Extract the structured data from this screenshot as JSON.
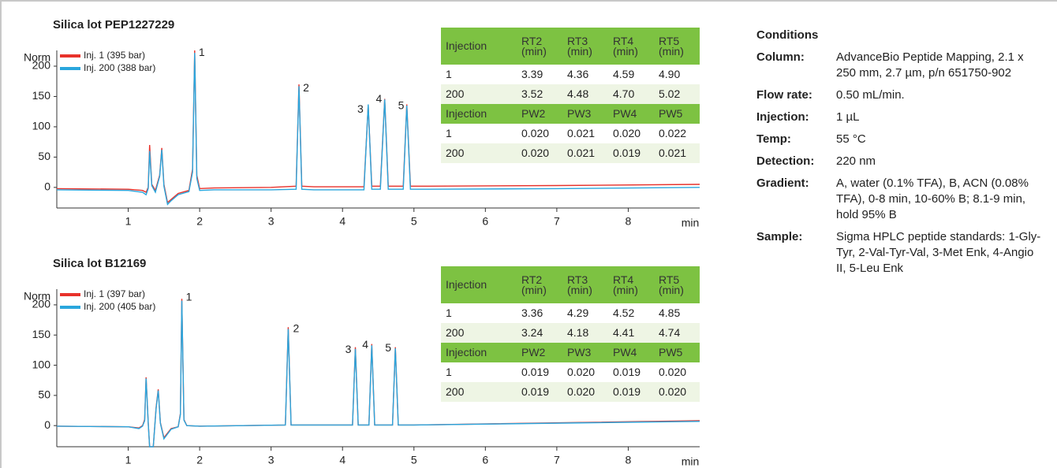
{
  "chart_data": [
    {
      "type": "line",
      "title": "Silica lot PEP1227229",
      "ylabel": "Norm",
      "xlabel": "min",
      "x": [
        0,
        1.0,
        1.2,
        1.25,
        1.28,
        1.3,
        1.33,
        1.38,
        1.44,
        1.47,
        1.5,
        1.55,
        1.6,
        1.7,
        1.85,
        1.9,
        1.93,
        1.96,
        2.0,
        2.2,
        3.0,
        3.35,
        3.39,
        3.43,
        3.6,
        4.3,
        4.36,
        4.41,
        4.53,
        4.59,
        4.64,
        4.85,
        4.9,
        4.95,
        5.2,
        7.0,
        9.0
      ],
      "series": [
        {
          "name": "Inj. 1 (395 bar)",
          "color": "#e8322b",
          "values": [
            -2,
            -3,
            -5,
            -8,
            0,
            70,
            5,
            -5,
            20,
            65,
            5,
            -25,
            -20,
            -10,
            -5,
            30,
            226,
            20,
            -2,
            -1,
            0,
            2,
            170,
            2,
            1,
            1,
            135,
            2,
            2,
            146,
            2,
            2,
            137,
            2,
            2,
            3,
            5
          ]
        },
        {
          "name": "Inj. 200 (388 bar)",
          "color": "#2aa6dd",
          "values": [
            -4,
            -5,
            -8,
            -12,
            -2,
            60,
            3,
            -8,
            18,
            62,
            2,
            -28,
            -22,
            -12,
            -7,
            25,
            222,
            15,
            -5,
            -4,
            -4,
            -3,
            167,
            -3,
            -4,
            -4,
            137,
            -3,
            -3,
            145,
            -3,
            -3,
            135,
            -3,
            -3,
            -2,
            0
          ]
        }
      ],
      "xlim": [
        0,
        9
      ],
      "xticks": [
        1,
        2,
        3,
        4,
        5,
        6,
        7,
        8
      ],
      "ylim": [
        -34,
        226
      ],
      "yticks": [
        0,
        50,
        100,
        150,
        200
      ],
      "grid": false,
      "legend": "upper left",
      "annotations": [
        {
          "text": "1",
          "x": 2.03,
          "y": 222
        },
        {
          "text": "2",
          "x": 3.49,
          "y": 163
        },
        {
          "text": "3",
          "x": 4.25,
          "y": 128
        },
        {
          "text": "4",
          "x": 4.51,
          "y": 145
        },
        {
          "text": "5",
          "x": 4.82,
          "y": 134
        }
      ],
      "tables": [
        {
          "header": [
            "Injection",
            "RT2 (min)",
            "RT3 (min)",
            "RT4 (min)",
            "RT5 (min)"
          ],
          "rows": [
            [
              "1",
              "3.39",
              "4.36",
              "4.59",
              "4.90"
            ],
            [
              "200",
              "3.52",
              "4.48",
              "4.70",
              "5.02"
            ]
          ]
        },
        {
          "header": [
            "Injection",
            "PW2",
            "PW3",
            "PW4",
            "PW5"
          ],
          "rows": [
            [
              "1",
              "0.020",
              "0.021",
              "0.020",
              "0.022"
            ],
            [
              "200",
              "0.020",
              "0.021",
              "0.019",
              "0.021"
            ]
          ]
        }
      ]
    },
    {
      "type": "line",
      "title": "Silica lot B12169",
      "ylabel": "Norm",
      "xlabel": "min",
      "x": [
        0,
        1.0,
        1.15,
        1.2,
        1.23,
        1.25,
        1.28,
        1.3,
        1.35,
        1.39,
        1.42,
        1.45,
        1.5,
        1.6,
        1.7,
        1.73,
        1.75,
        1.78,
        1.82,
        2.0,
        3.2,
        3.24,
        3.28,
        4.14,
        4.18,
        4.22,
        4.37,
        4.41,
        4.45,
        4.7,
        4.74,
        4.78,
        5.0,
        9.0
      ],
      "series": [
        {
          "name": "Inj. 1 (397 bar)",
          "color": "#e8322b",
          "values": [
            -1,
            -2,
            -4,
            0,
            10,
            80,
            5,
            -35,
            -35,
            30,
            60,
            5,
            -20,
            -5,
            -2,
            20,
            210,
            10,
            0,
            -1,
            1,
            163,
            1,
            1,
            130,
            1,
            1,
            135,
            1,
            1,
            130,
            1,
            1,
            8
          ]
        },
        {
          "name": "Inj. 200 (405 bar)",
          "color": "#2aa6dd",
          "values": [
            -1,
            -2,
            -5,
            -1,
            8,
            78,
            4,
            -35,
            -35,
            28,
            58,
            4,
            -22,
            -6,
            -2,
            18,
            207,
            9,
            0,
            -1,
            1,
            160,
            1,
            1,
            127,
            1,
            1,
            133,
            1,
            1,
            128,
            1,
            1,
            7
          ]
        }
      ],
      "xlim": [
        0,
        9
      ],
      "xticks": [
        1,
        2,
        3,
        4,
        5,
        6,
        7,
        8
      ],
      "ylim": [
        -35,
        226
      ],
      "yticks": [
        0,
        50,
        100,
        150,
        200
      ],
      "grid": false,
      "legend": "upper left",
      "annotations": [
        {
          "text": "1",
          "x": 1.85,
          "y": 212
        },
        {
          "text": "2",
          "x": 3.35,
          "y": 160
        },
        {
          "text": "3",
          "x": 4.08,
          "y": 125
        },
        {
          "text": "4",
          "x": 4.32,
          "y": 133
        },
        {
          "text": "5",
          "x": 4.64,
          "y": 128
        }
      ],
      "tables": [
        {
          "header": [
            "Injection",
            "RT2 (min)",
            "RT3 (min)",
            "RT4 (min)",
            "RT5 (min)"
          ],
          "rows": [
            [
              "1",
              "3.36",
              "4.29",
              "4.52",
              "4.85"
            ],
            [
              "200",
              "3.24",
              "4.18",
              "4.41",
              "4.74"
            ]
          ]
        },
        {
          "header": [
            "Injection",
            "PW2",
            "PW3",
            "PW4",
            "PW5"
          ],
          "rows": [
            [
              "1",
              "0.019",
              "0.020",
              "0.019",
              "0.020"
            ],
            [
              "200",
              "0.019",
              "0.020",
              "0.019",
              "0.020"
            ]
          ]
        }
      ]
    }
  ],
  "conditions": {
    "title": "Conditions",
    "rows": [
      [
        "Column:",
        "AdvanceBio Peptide Mapping, 2.1 x 250 mm, 2.7 µm, p/n 651750-902"
      ],
      [
        "Flow rate:",
        "0.50 mL/min."
      ],
      [
        "Injection:",
        "1 µL"
      ],
      [
        "Temp:",
        "55 °C"
      ],
      [
        "Detection:",
        "220 nm"
      ],
      [
        "Gradient:",
        "A, water (0.1% TFA), B, ACN (0.08% TFA), 0-8 min, 10-60% B; 8.1-9 min, hold 95% B"
      ],
      [
        "Sample:",
        "Sigma HPLC peptide standards: 1-Gly-Tyr, 2-Val-Tyr-Val, 3-Met Enk, 4-Angio II, 5-Leu Enk"
      ]
    ]
  }
}
